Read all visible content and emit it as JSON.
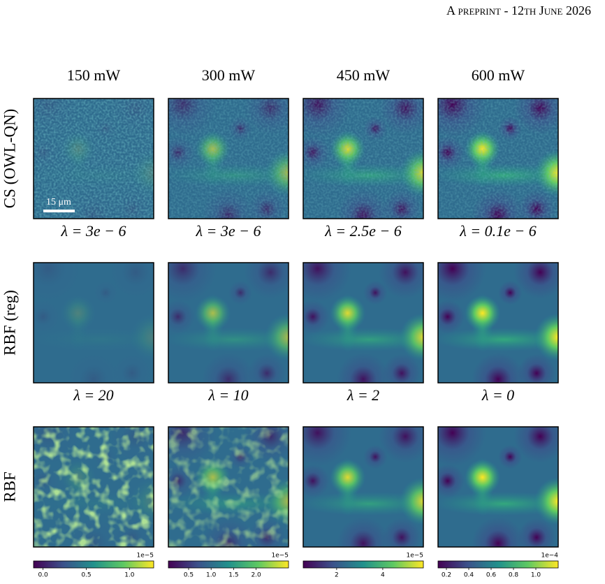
{
  "header": "A preprint - 12th June 2026",
  "columns": [
    "150 mW",
    "300 mW",
    "450 mW",
    "600 mW"
  ],
  "rows": [
    "CS (OWL-QN)",
    "RBF (reg)",
    "RBF"
  ],
  "scale_bar": "15 μm",
  "lambda_labels": [
    [
      "λ = 3e − 6",
      "λ = 3e − 6",
      "λ = 2.5e − 6",
      "λ = 0.1e − 6"
    ],
    [
      "λ = 20",
      "λ = 10",
      "λ = 2",
      "λ = 0"
    ]
  ],
  "colorbars": [
    {
      "offset_label": "1e−5",
      "lim": [
        -0.11,
        1.28
      ],
      "ticks": [
        {
          "value": 0,
          "label": "0.0"
        },
        0.5,
        {
          "value": 1,
          "label": "1.0"
        }
      ]
    },
    {
      "offset_label": "1e−5",
      "lim": [
        0.05,
        2.72
      ],
      "ticks": [
        0.5,
        {
          "value": 1,
          "label": "1.0"
        },
        1.5,
        {
          "value": 2,
          "label": "2.0"
        }
      ]
    },
    {
      "offset_label": "1e−5",
      "lim": [
        0.55,
        5.76
      ],
      "ticks": [
        2,
        4
      ]
    },
    {
      "offset_label": "1e−4",
      "lim": [
        0.125,
        1.2
      ],
      "ticks": [
        0.2,
        0.4,
        0.6,
        0.8,
        {
          "value": 1,
          "label": "1.0"
        }
      ]
    }
  ]
}
